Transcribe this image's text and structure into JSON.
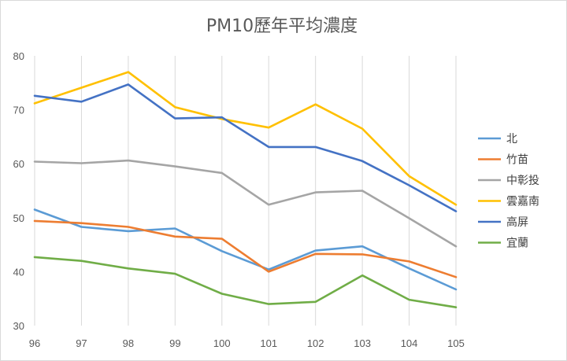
{
  "chart_data": {
    "type": "line",
    "title": "PM10歷年平均濃度",
    "xlabel": "",
    "ylabel": "",
    "categories": [
      "96",
      "97",
      "98",
      "99",
      "100",
      "101",
      "102",
      "103",
      "104",
      "105"
    ],
    "ylim": [
      30,
      80
    ],
    "yticks": [
      30,
      40,
      50,
      60,
      70,
      80
    ],
    "grid": "vertical",
    "legend": "right",
    "series": [
      {
        "name": "北",
        "color": "#5B9BD5",
        "values": [
          51.5,
          48.3,
          47.5,
          48.0,
          43.8,
          40.4,
          43.9,
          44.7,
          40.6,
          36.7
        ]
      },
      {
        "name": "竹苗",
        "color": "#ED7D31",
        "values": [
          49.4,
          49.0,
          48.3,
          46.5,
          46.1,
          40.0,
          43.3,
          43.2,
          41.9,
          39.0
        ]
      },
      {
        "name": "中彰投",
        "color": "#A5A5A5",
        "values": [
          60.4,
          60.1,
          60.6,
          59.5,
          58.3,
          52.4,
          54.7,
          55.0,
          49.9,
          44.7
        ]
      },
      {
        "name": "雲嘉南",
        "color": "#FFC000",
        "values": [
          71.2,
          74.1,
          77.0,
          70.5,
          68.3,
          66.7,
          71.0,
          66.5,
          57.7,
          52.4
        ]
      },
      {
        "name": "高屏",
        "color": "#4472C4",
        "values": [
          72.6,
          71.5,
          74.7,
          68.4,
          68.6,
          63.1,
          63.1,
          60.5,
          56.0,
          51.2
        ]
      },
      {
        "name": "宜蘭",
        "color": "#70AD47",
        "values": [
          42.7,
          42.0,
          40.6,
          39.6,
          35.9,
          34.0,
          34.4,
          39.3,
          34.8,
          33.4
        ]
      }
    ]
  }
}
